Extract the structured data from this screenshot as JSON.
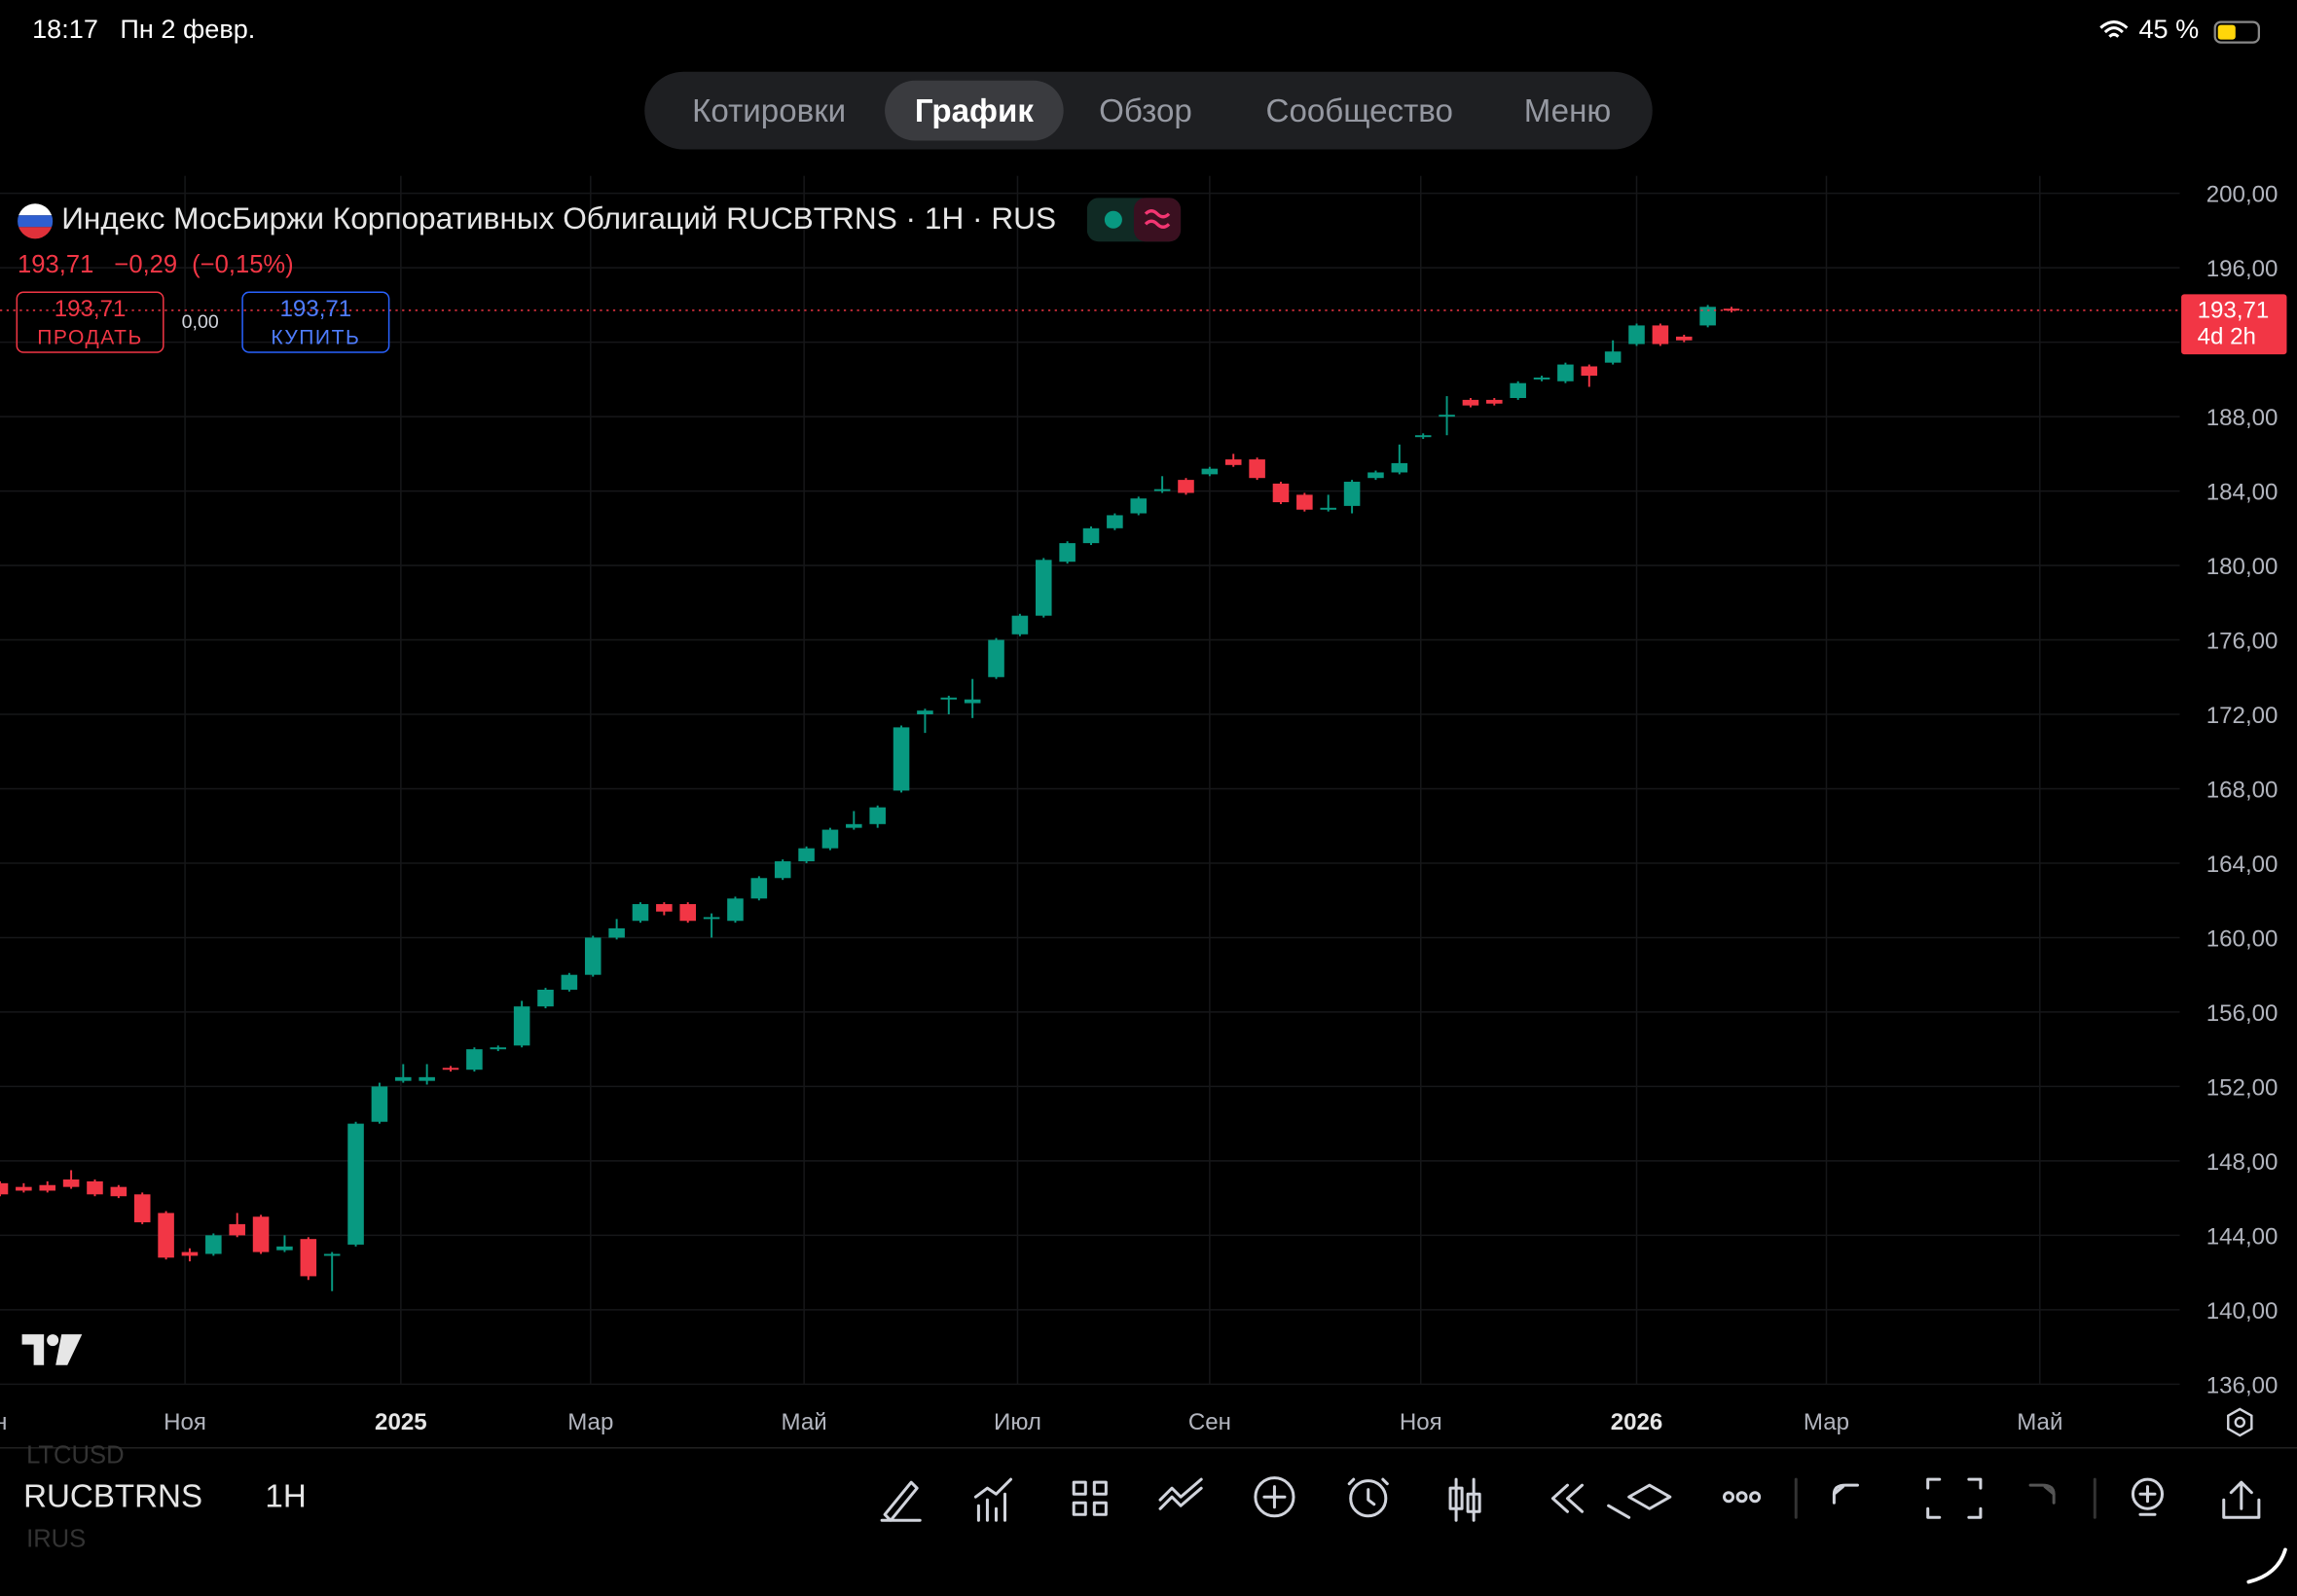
{
  "status_bar": {
    "time": "18:17",
    "date": "Пн 2 февр.",
    "battery": "45 %"
  },
  "tabs": [
    {
      "label": "Котировки"
    },
    {
      "label": "График",
      "active": true
    },
    {
      "label": "Обзор"
    },
    {
      "label": "Сообщество"
    },
    {
      "label": "Меню"
    }
  ],
  "legend": {
    "title": "Индекс МосБиржи Корпоративных Облигаций RUCBTRNS · 1H · RUS",
    "price": "193,71",
    "change": "−0,29",
    "change_pct": "(−0,15%)"
  },
  "trade": {
    "sell_price": "193,71",
    "sell_label": "ПРОДАТЬ",
    "spread": "0,00",
    "buy_price": "193,71",
    "buy_label": "КУПИТЬ"
  },
  "chart_data": {
    "type": "candlestick",
    "up_color": "#089981",
    "down_color": "#f23645",
    "grid": true,
    "x": [
      0,
      1,
      2,
      3,
      4,
      5,
      6,
      7,
      8,
      9,
      10,
      11,
      12,
      13,
      14,
      15,
      16,
      17,
      18,
      19,
      20,
      21,
      22,
      23,
      24,
      25,
      26,
      27,
      28,
      29,
      30,
      31,
      32,
      33,
      34,
      35,
      36,
      37,
      38,
      39,
      40,
      41,
      42,
      43,
      44,
      45,
      46,
      47,
      48,
      49,
      50,
      51,
      52,
      53,
      54,
      55,
      56,
      57,
      58,
      59,
      60,
      61,
      62,
      63,
      64,
      65,
      66,
      67,
      68,
      69,
      70,
      71,
      72,
      73
    ],
    "open": [
      146.8,
      146.6,
      146.7,
      147.0,
      146.9,
      146.6,
      146.2,
      145.2,
      143.1,
      143.0,
      144.6,
      145.0,
      143.2,
      143.8,
      142.9,
      143.5,
      150.1,
      152.3,
      152.3,
      153.0,
      152.9,
      154.0,
      154.2,
      156.3,
      157.2,
      158.0,
      160.0,
      160.9,
      161.8,
      161.8,
      161.0,
      160.9,
      162.1,
      163.2,
      164.1,
      164.8,
      165.9,
      166.1,
      167.9,
      172.0,
      172.8,
      172.6,
      174.0,
      176.3,
      177.3,
      180.2,
      181.2,
      182.0,
      182.8,
      184.0,
      184.6,
      184.9,
      185.7,
      185.7,
      184.4,
      183.8,
      183.0,
      183.2,
      184.7,
      185.0,
      186.9,
      188.0,
      188.9,
      188.9,
      189.0,
      190.0,
      189.9,
      190.7,
      190.9,
      191.9,
      192.9,
      192.3,
      192.9,
      193.8
    ],
    "high": [
      146.9,
      146.8,
      146.9,
      147.5,
      147.0,
      146.7,
      146.3,
      145.3,
      143.3,
      144.1,
      145.2,
      145.1,
      144.0,
      143.9,
      143.1,
      150.1,
      152.2,
      153.2,
      153.2,
      153.1,
      154.1,
      154.2,
      156.6,
      157.3,
      158.1,
      160.1,
      161.0,
      161.9,
      161.9,
      161.9,
      161.3,
      162.2,
      163.3,
      164.2,
      164.9,
      165.9,
      166.8,
      167.1,
      171.4,
      172.3,
      173.0,
      173.9,
      176.1,
      177.4,
      180.4,
      181.3,
      182.1,
      182.8,
      183.7,
      184.8,
      184.7,
      185.3,
      186.0,
      185.8,
      184.5,
      183.9,
      183.8,
      184.6,
      185.1,
      186.5,
      187.1,
      189.1,
      189.0,
      189.0,
      189.9,
      190.2,
      190.9,
      190.8,
      192.1,
      193.0,
      193.0,
      192.4,
      194.0,
      193.9
    ],
    "low": [
      146.1,
      146.3,
      146.3,
      146.5,
      146.1,
      146.0,
      144.6,
      142.7,
      142.6,
      142.9,
      143.9,
      143.0,
      143.1,
      141.6,
      141.0,
      143.4,
      150.0,
      152.2,
      152.1,
      152.8,
      152.8,
      153.9,
      154.1,
      156.2,
      157.1,
      157.9,
      159.9,
      160.8,
      161.2,
      160.8,
      160.0,
      160.8,
      162.0,
      163.1,
      164.0,
      164.7,
      165.8,
      165.9,
      167.8,
      171.0,
      172.0,
      171.8,
      173.9,
      176.2,
      177.2,
      180.1,
      181.1,
      181.9,
      182.7,
      183.9,
      183.8,
      184.8,
      185.3,
      184.6,
      183.3,
      182.9,
      182.9,
      182.8,
      184.6,
      184.9,
      186.8,
      187.0,
      188.5,
      188.6,
      188.9,
      189.9,
      189.8,
      189.6,
      190.8,
      191.8,
      191.8,
      192.0,
      192.8,
      193.6
    ],
    "close": [
      146.2,
      146.4,
      146.4,
      146.6,
      146.2,
      146.1,
      144.7,
      142.8,
      142.9,
      144.0,
      144.0,
      143.1,
      143.4,
      141.8,
      143.0,
      150.0,
      152.0,
      152.5,
      152.5,
      152.9,
      154.0,
      154.1,
      156.3,
      157.2,
      158.0,
      160.0,
      160.5,
      161.8,
      161.4,
      160.9,
      161.1,
      162.1,
      163.2,
      164.1,
      164.8,
      165.8,
      166.1,
      167.0,
      171.3,
      172.2,
      172.9,
      172.8,
      176.0,
      177.3,
      180.3,
      181.2,
      182.0,
      182.7,
      183.6,
      184.1,
      183.9,
      185.2,
      185.4,
      184.7,
      183.4,
      183.0,
      183.1,
      184.5,
      185.0,
      185.5,
      187.0,
      188.1,
      188.6,
      188.7,
      189.8,
      190.1,
      190.8,
      190.2,
      191.5,
      192.9,
      191.9,
      192.1,
      193.9,
      193.71
    ],
    "xlim": [
      0,
      91.9
    ],
    "xticks": [
      {
        "value": -0.6,
        "label": "Сен"
      },
      {
        "value": 7.8,
        "label": "Ноя"
      },
      {
        "value": 16.9,
        "label": "2025"
      },
      {
        "value": 24.9,
        "label": "Мар"
      },
      {
        "value": 33.9,
        "label": "Май"
      },
      {
        "value": 42.9,
        "label": "Июл"
      },
      {
        "value": 51.0,
        "label": "Сен"
      },
      {
        "value": 59.9,
        "label": "Ноя"
      },
      {
        "value": 69.0,
        "label": "2026"
      },
      {
        "value": 77.0,
        "label": "Мар"
      },
      {
        "value": 86.0,
        "label": "Май"
      }
    ],
    "ylim": [
      136,
      200
    ],
    "yticks": [
      {
        "value": 136,
        "label": "136,00"
      },
      {
        "value": 140,
        "label": "140,00"
      },
      {
        "value": 144,
        "label": "144,00"
      },
      {
        "value": 148,
        "label": "148,00"
      },
      {
        "value": 152,
        "label": "152,00"
      },
      {
        "value": 156,
        "label": "156,00"
      },
      {
        "value": 160,
        "label": "160,00"
      },
      {
        "value": 164,
        "label": "164,00"
      },
      {
        "value": 168,
        "label": "168,00"
      },
      {
        "value": 172,
        "label": "172,00"
      },
      {
        "value": 176,
        "label": "176,00"
      },
      {
        "value": 180,
        "label": "180,00"
      },
      {
        "value": 184,
        "label": "184,00"
      },
      {
        "value": 188,
        "label": "188,00"
      },
      {
        "value": 192,
        "label": "192,00"
      },
      {
        "value": 196,
        "label": "196,00"
      },
      {
        "value": 200,
        "label": "200,00"
      }
    ],
    "last_price": {
      "value": 193.71,
      "label": "193,71",
      "countdown": "4d 2h"
    }
  },
  "bottom_bar": {
    "symbol": "RUCBTRNS",
    "interval": "1H",
    "ghost_above": "LTCUSD",
    "ghost_below": "IRUS"
  }
}
